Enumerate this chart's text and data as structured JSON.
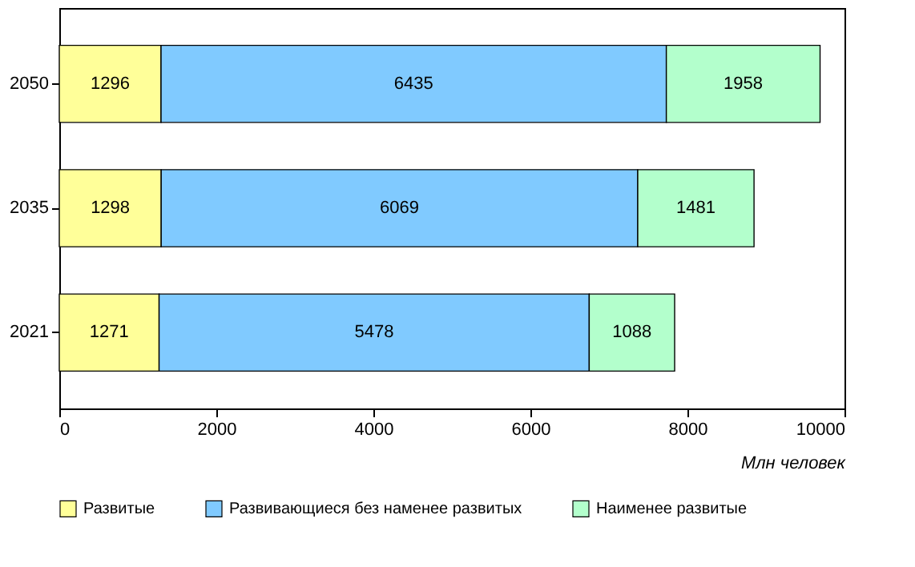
{
  "chart_data": {
    "type": "bar",
    "orientation": "horizontal",
    "stacked": true,
    "categories": [
      "2050",
      "2035",
      "2021"
    ],
    "series": [
      {
        "name": "Развитые",
        "color": "#ffff99",
        "values": [
          1296,
          1298,
          1271
        ]
      },
      {
        "name": "Развивающиеся без наменее развитых",
        "color": "#80caff",
        "values": [
          6435,
          6069,
          5478
        ]
      },
      {
        "name": "Наименее развитые",
        "color": "#b3ffcc",
        "values": [
          1958,
          1481,
          1088
        ]
      }
    ],
    "xlim": [
      0,
      10000
    ],
    "xticks": [
      0,
      2000,
      4000,
      6000,
      8000,
      10000
    ],
    "xlabel": "Млн человек",
    "data_labels": true,
    "grid": false,
    "legend": "bottom"
  }
}
